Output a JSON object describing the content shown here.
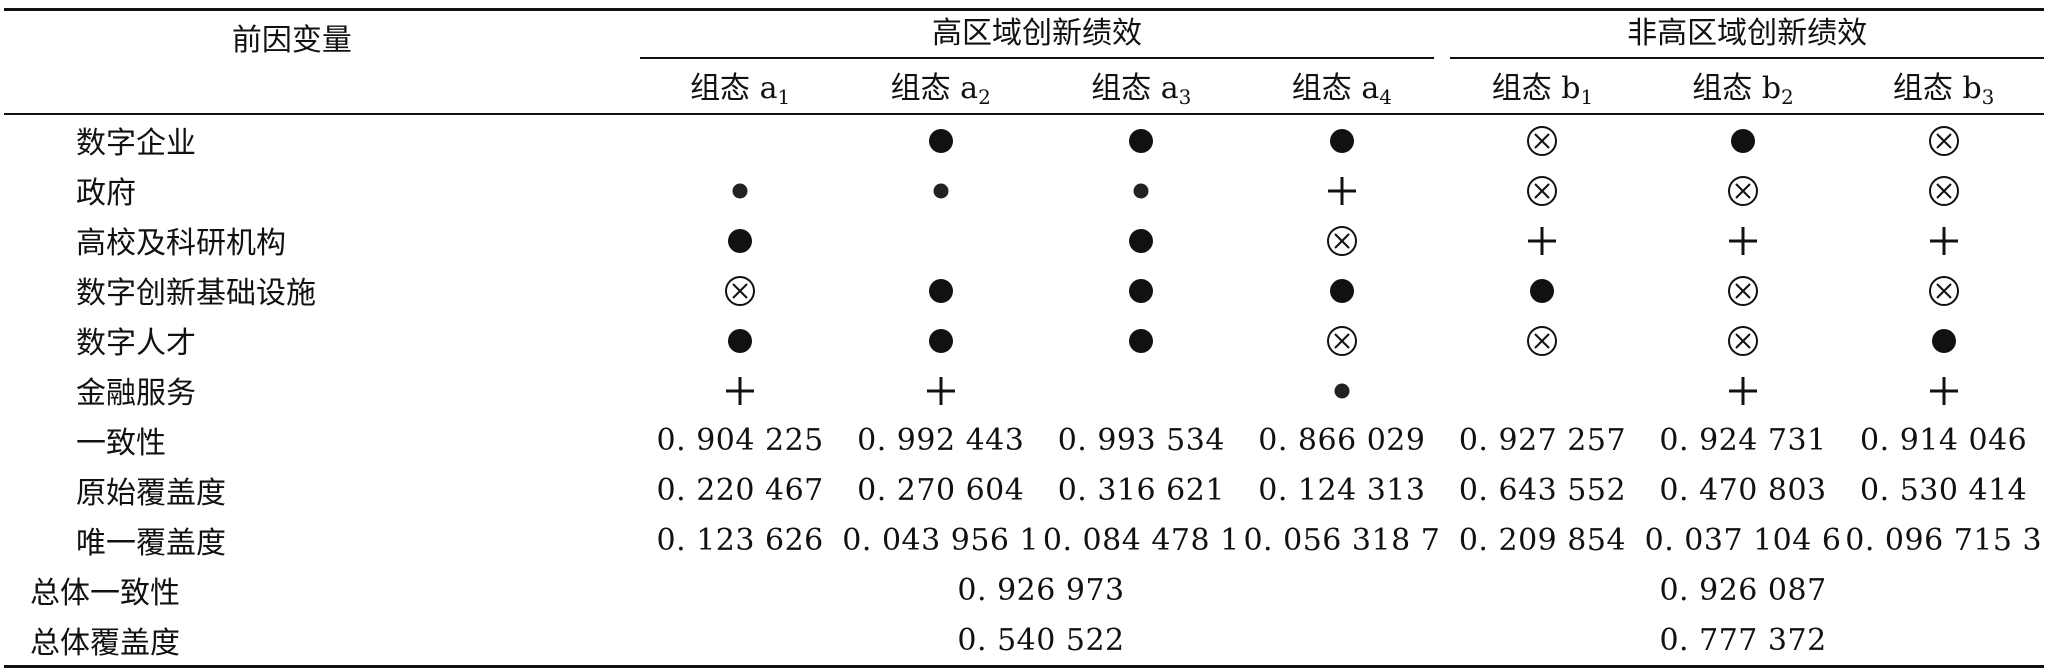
{
  "table": {
    "corner_header": "前因变量",
    "groups": [
      {
        "label": "高区域创新绩效",
        "span": 4
      },
      {
        "label": "非高区域创新绩效",
        "span": 3
      }
    ],
    "configurations": [
      {
        "prefix": "组态 a",
        "sub": "1"
      },
      {
        "prefix": "组态 a",
        "sub": "2"
      },
      {
        "prefix": "组态 a",
        "sub": "3"
      },
      {
        "prefix": "组态 a",
        "sub": "4"
      },
      {
        "prefix": "组态 b",
        "sub": "1"
      },
      {
        "prefix": "组态 b",
        "sub": "2"
      },
      {
        "prefix": "组态 b",
        "sub": "3"
      }
    ],
    "legend_symbols": {
      "core_present": "big-dot",
      "peripheral_present": "small-dot",
      "absent": "circled-x",
      "peripheral_absent": "plus"
    },
    "condition_rows": [
      {
        "label": "数字企业",
        "cells": [
          "",
          "big-dot",
          "big-dot",
          "big-dot",
          "circled-x",
          "big-dot",
          "circled-x"
        ]
      },
      {
        "label": "政府",
        "cells": [
          "small-dot",
          "small-dot",
          "small-dot",
          "plus",
          "circled-x",
          "circled-x",
          "circled-x"
        ]
      },
      {
        "label": "高校及科研机构",
        "cells": [
          "big-dot",
          "",
          "big-dot",
          "circled-x",
          "plus",
          "plus",
          "plus"
        ]
      },
      {
        "label": "数字创新基础设施",
        "cells": [
          "circled-x",
          "big-dot",
          "big-dot",
          "big-dot",
          "big-dot",
          "circled-x",
          "circled-x"
        ]
      },
      {
        "label": "数字人才",
        "cells": [
          "big-dot",
          "big-dot",
          "big-dot",
          "circled-x",
          "circled-x",
          "circled-x",
          "big-dot"
        ]
      },
      {
        "label": "金融服务",
        "cells": [
          "plus",
          "plus",
          "",
          "small-dot",
          "",
          "plus",
          "plus"
        ]
      }
    ],
    "metric_rows": [
      {
        "label": "一致性",
        "values": [
          "0. 904 225",
          "0. 992 443",
          "0. 993 534",
          "0. 866 029",
          "0. 927 257",
          "0. 924 731",
          "0. 914 046"
        ]
      },
      {
        "label": "原始覆盖度",
        "values": [
          "0. 220 467",
          "0. 270 604",
          "0. 316 621",
          "0. 124 313",
          "0. 643 552",
          "0. 470 803",
          "0. 530 414"
        ]
      },
      {
        "label": "唯一覆盖度",
        "values": [
          "0. 123 626",
          "0. 043 956 1",
          "0. 084 478 1",
          "0. 056 318 7",
          "0. 209 854",
          "0. 037 104 6",
          "0. 096 715 3"
        ]
      }
    ],
    "overall_rows": [
      {
        "label": "总体一致性",
        "high": "0. 926 973",
        "nonhigh": "0. 926 087"
      },
      {
        "label": "总体覆盖度",
        "high": "0. 540 522",
        "nonhigh": "0. 777 372"
      }
    ]
  }
}
